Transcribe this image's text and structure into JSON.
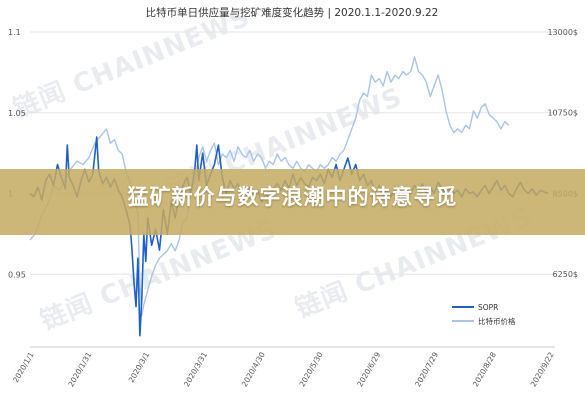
{
  "chart_data": {
    "type": "line",
    "title": "比特币单日供应量与挖矿难度变化趋势 | 2020.1.1-2020.9.22",
    "left_axis": {
      "ticks": [
        "1.1",
        "1.05",
        "1",
        "0.95"
      ],
      "values": [
        1.1,
        1.05,
        1.0,
        0.95
      ],
      "ylim": [
        0.905,
        1.1
      ]
    },
    "right_axis": {
      "ticks": [
        "13000$",
        "10750$",
        "8500$",
        "6250$"
      ],
      "values": [
        13000,
        10750,
        8500,
        6250
      ],
      "ylim": [
        4220,
        13000
      ]
    },
    "x_ticks": [
      "2020/1/1",
      "2020/1/31",
      "2020/3/1",
      "2020/3/31",
      "2020/4/30",
      "2020/5/30",
      "2020/6/29",
      "2020/7/29",
      "2020/8/28",
      "2020/9/22"
    ],
    "series": [
      {
        "name": "SOPR",
        "axis": "left",
        "color": "#1f5fc8",
        "values": [
          [
            0,
            1.0
          ],
          [
            2,
            0.998
          ],
          [
            4,
            1.004
          ],
          [
            6,
            0.996
          ],
          [
            8,
            1.008
          ],
          [
            10,
            1.012
          ],
          [
            12,
            1.005
          ],
          [
            14,
            1.018
          ],
          [
            16,
            1.01
          ],
          [
            18,
            1.003
          ],
          [
            19,
            1.03
          ],
          [
            20,
            1.01
          ],
          [
            22,
            1.005
          ],
          [
            24,
            0.998
          ],
          [
            26,
            1.008
          ],
          [
            28,
            1.015
          ],
          [
            30,
            1.007
          ],
          [
            32,
            1.012
          ],
          [
            34,
            1.035
          ],
          [
            35,
            1.014
          ],
          [
            37,
            1.006
          ],
          [
            39,
            1.01
          ],
          [
            41,
            1.004
          ],
          [
            43,
            1.009
          ],
          [
            45,
            1.002
          ],
          [
            47,
            0.998
          ],
          [
            49,
            0.99
          ],
          [
            51,
            0.98
          ],
          [
            52,
            0.965
          ],
          [
            53,
            0.945
          ],
          [
            54,
            0.93
          ],
          [
            55,
            0.96
          ],
          [
            56,
            0.912
          ],
          [
            57,
            0.935
          ],
          [
            58,
            0.975
          ],
          [
            59,
            0.958
          ],
          [
            60,
            0.985
          ],
          [
            62,
            0.968
          ],
          [
            64,
            0.978
          ],
          [
            66,
            0.965
          ],
          [
            68,
            0.99
          ],
          [
            70,
            0.975
          ],
          [
            72,
            0.995
          ],
          [
            74,
            0.985
          ],
          [
            76,
            0.998
          ],
          [
            78,
            1.005
          ],
          [
            80,
            1.01
          ],
          [
            82,
            1.0
          ],
          [
            84,
            1.015
          ],
          [
            85,
            1.03
          ],
          [
            86,
            1.008
          ],
          [
            88,
            1.025
          ],
          [
            90,
            1.005
          ],
          [
            92,
            1.012
          ],
          [
            94,
            1.018
          ],
          [
            96,
            1.03
          ],
          [
            98,
            1.01
          ],
          [
            100,
            1.0
          ],
          [
            102,
            1.008
          ],
          [
            104,
            1.003
          ],
          [
            106,
            1.006
          ],
          [
            108,
            1.0
          ],
          [
            110,
            0.996
          ],
          [
            112,
            1.004
          ],
          [
            114,
            0.998
          ],
          [
            116,
            1.002
          ],
          [
            118,
            0.995
          ],
          [
            120,
            1.0
          ],
          [
            122,
            0.997
          ],
          [
            124,
            1.003
          ],
          [
            126,
            1.006
          ],
          [
            128,
            1.002
          ],
          [
            130,
            1.008
          ],
          [
            132,
            1.003
          ],
          [
            134,
            1.012
          ],
          [
            136,
            1.005
          ],
          [
            138,
            1.01
          ],
          [
            140,
            1.006
          ],
          [
            142,
            1.004
          ],
          [
            144,
            1.01
          ],
          [
            146,
            1.008
          ],
          [
            148,
            1.012
          ],
          [
            150,
            1.006
          ],
          [
            152,
            1.015
          ],
          [
            154,
            1.01
          ],
          [
            156,
            1.018
          ],
          [
            158,
            1.008
          ],
          [
            160,
            1.015
          ],
          [
            162,
            1.022
          ],
          [
            164,
            1.012
          ],
          [
            166,
            1.018
          ],
          [
            168,
            1.008
          ],
          [
            170,
            1.012
          ],
          [
            172,
            1.005
          ],
          [
            174,
            1.008
          ],
          [
            176,
            1.0
          ],
          [
            178,
            1.005
          ],
          [
            180,
            0.999
          ],
          [
            182,
            1.003
          ],
          [
            184,
            0.998
          ],
          [
            186,
            1.004
          ],
          [
            188,
            1.0
          ],
          [
            190,
            0.996
          ],
          [
            192,
            1.003
          ],
          [
            194,
            1.0
          ],
          [
            196,
            1.005
          ],
          [
            198,
            1.002
          ],
          [
            200,
            1.006
          ],
          [
            202,
            1.0
          ],
          [
            204,
            1.004
          ],
          [
            206,
            1.0
          ],
          [
            208,
            1.007
          ],
          [
            210,
            1.003
          ],
          [
            212,
            0.999
          ],
          [
            214,
            1.004
          ],
          [
            216,
            1.0
          ],
          [
            218,
            1.002
          ],
          [
            220,
            0.998
          ],
          [
            222,
            1.003
          ],
          [
            224,
            1.0
          ],
          [
            226,
            1.001
          ],
          [
            228,
            0.998
          ],
          [
            230,
            1.002
          ],
          [
            232,
            1.005
          ],
          [
            234,
            1.0
          ],
          [
            236,
            1.004
          ],
          [
            238,
            1.008
          ],
          [
            240,
            1.002
          ],
          [
            242,
            1.005
          ],
          [
            244,
            1.0
          ],
          [
            246,
            0.998
          ],
          [
            248,
            1.003
          ],
          [
            250,
            1.007
          ],
          [
            252,
            1.002
          ],
          [
            254,
            1.0
          ],
          [
            256,
            1.003
          ],
          [
            258,
            0.999
          ],
          [
            260,
            1.002
          ],
          [
            264,
            1.0
          ]
        ]
      },
      {
        "name": "比特币价格",
        "axis": "right",
        "color": "#a9c4ea",
        "values": [
          [
            0,
            7200
          ],
          [
            3,
            7400
          ],
          [
            6,
            7900
          ],
          [
            9,
            8200
          ],
          [
            12,
            8700
          ],
          [
            15,
            8600
          ],
          [
            18,
            8900
          ],
          [
            21,
            9200
          ],
          [
            24,
            9400
          ],
          [
            27,
            9300
          ],
          [
            30,
            9500
          ],
          [
            33,
            9900
          ],
          [
            36,
            10100
          ],
          [
            39,
            10300
          ],
          [
            41,
            9900
          ],
          [
            43,
            10000
          ],
          [
            45,
            9700
          ],
          [
            47,
            9600
          ],
          [
            49,
            9100
          ],
          [
            51,
            8800
          ],
          [
            53,
            8500
          ],
          [
            55,
            7900
          ],
          [
            56,
            6000
          ],
          [
            57,
            5100
          ],
          [
            58,
            5400
          ],
          [
            60,
            5800
          ],
          [
            62,
            6200
          ],
          [
            64,
            6500
          ],
          [
            66,
            6700
          ],
          [
            68,
            6800
          ],
          [
            70,
            6900
          ],
          [
            72,
            7100
          ],
          [
            74,
            6900
          ],
          [
            76,
            7200
          ],
          [
            78,
            7700
          ],
          [
            80,
            7800
          ],
          [
            82,
            8700
          ],
          [
            84,
            8800
          ],
          [
            86,
            9500
          ],
          [
            88,
            9800
          ],
          [
            90,
            9400
          ],
          [
            92,
            9700
          ],
          [
            94,
            9900
          ],
          [
            96,
            9300
          ],
          [
            98,
            9600
          ],
          [
            100,
            9500
          ],
          [
            102,
            9700
          ],
          [
            104,
            9400
          ],
          [
            106,
            9800
          ],
          [
            108,
            9600
          ],
          [
            110,
            9500
          ],
          [
            112,
            9700
          ],
          [
            114,
            9400
          ],
          [
            116,
            9600
          ],
          [
            118,
            9500
          ],
          [
            120,
            9200
          ],
          [
            122,
            9400
          ],
          [
            124,
            9300
          ],
          [
            126,
            9600
          ],
          [
            128,
            9400
          ],
          [
            130,
            9500
          ],
          [
            132,
            9300
          ],
          [
            134,
            9200
          ],
          [
            136,
            9400
          ],
          [
            138,
            9200
          ],
          [
            140,
            9100
          ],
          [
            142,
            9300
          ],
          [
            144,
            9200
          ],
          [
            146,
            9100
          ],
          [
            148,
            9300
          ],
          [
            150,
            9200
          ],
          [
            152,
            9300
          ],
          [
            154,
            9500
          ],
          [
            156,
            9400
          ],
          [
            158,
            9600
          ],
          [
            160,
            9700
          ],
          [
            162,
            10000
          ],
          [
            164,
            10300
          ],
          [
            166,
            10600
          ],
          [
            168,
            11100
          ],
          [
            170,
            11300
          ],
          [
            172,
            11200
          ],
          [
            174,
            11800
          ],
          [
            176,
            11600
          ],
          [
            178,
            11700
          ],
          [
            180,
            11500
          ],
          [
            182,
            11900
          ],
          [
            184,
            11600
          ],
          [
            186,
            11800
          ],
          [
            188,
            11700
          ],
          [
            190,
            11900
          ],
          [
            192,
            11800
          ],
          [
            194,
            11900
          ],
          [
            196,
            12300
          ],
          [
            198,
            11900
          ],
          [
            200,
            11800
          ],
          [
            202,
            11600
          ],
          [
            204,
            11200
          ],
          [
            206,
            11500
          ],
          [
            208,
            11800
          ],
          [
            210,
            11400
          ],
          [
            212,
            10800
          ],
          [
            214,
            10400
          ],
          [
            216,
            10200
          ],
          [
            218,
            10300
          ],
          [
            220,
            10200
          ],
          [
            222,
            10400
          ],
          [
            224,
            10300
          ],
          [
            226,
            10800
          ],
          [
            228,
            10600
          ],
          [
            230,
            10900
          ],
          [
            232,
            11000
          ],
          [
            234,
            10700
          ],
          [
            236,
            10600
          ],
          [
            238,
            10500
          ],
          [
            240,
            10300
          ],
          [
            242,
            10500
          ],
          [
            244,
            10400
          ]
        ]
      }
    ],
    "legend": {
      "placement": "bottom-right",
      "items": [
        "SOPR",
        "比特币价格"
      ]
    },
    "watermark": "链闻 CHAINNEWS"
  },
  "banner": {
    "text": "猛矿新价与数字浪潮中的诗意寻觅"
  }
}
